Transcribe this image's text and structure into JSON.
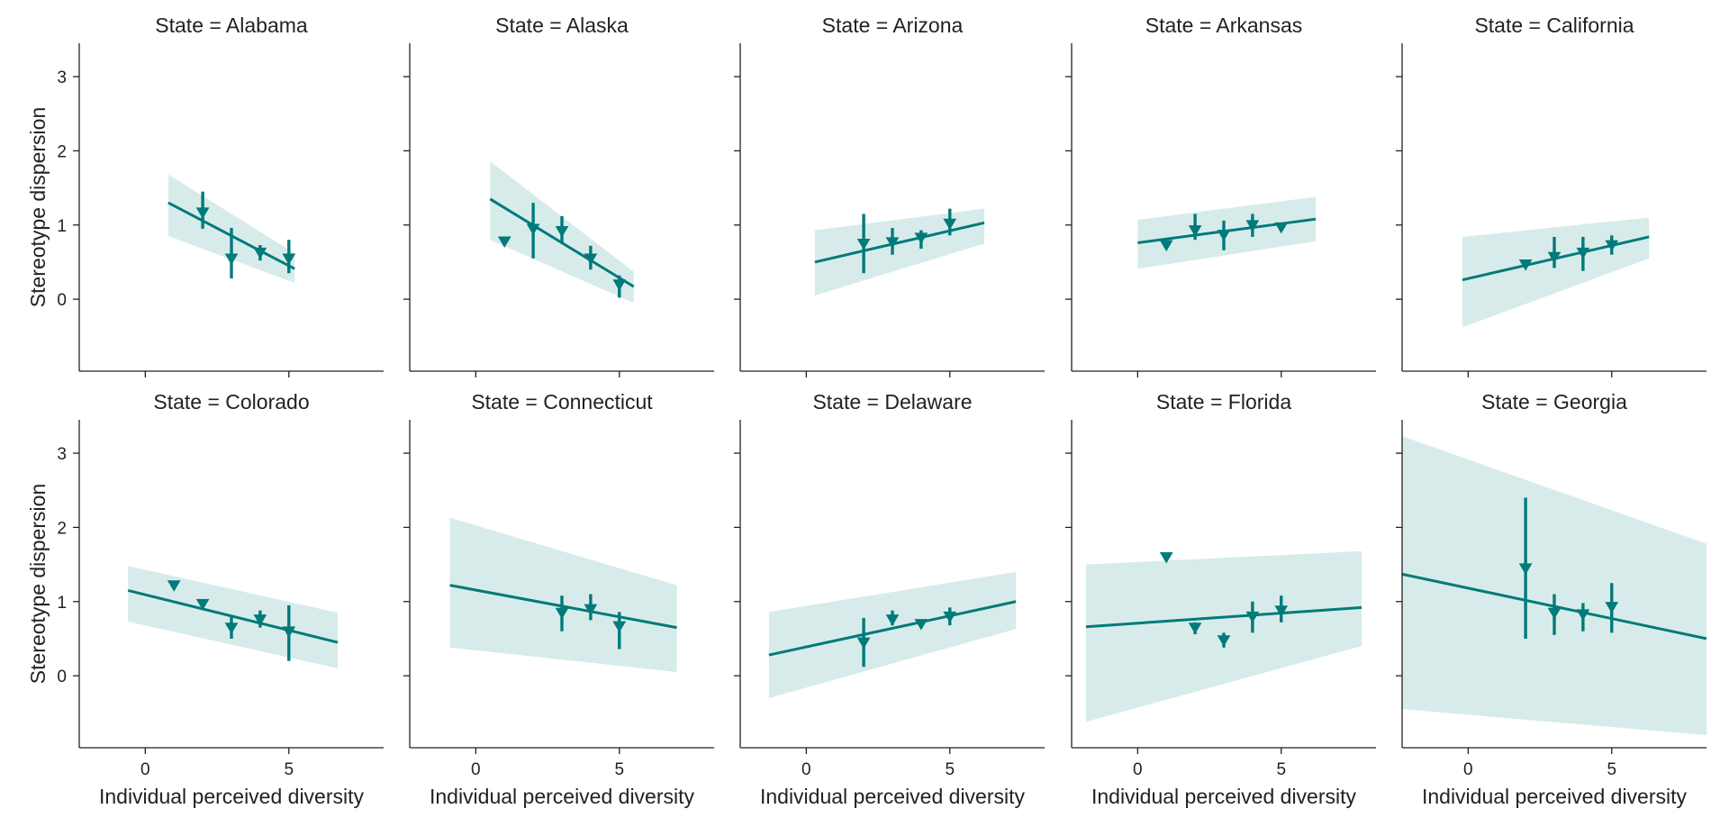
{
  "chart_data": {
    "type": "scatter",
    "layout": {
      "rows": 2,
      "cols": 5
    },
    "xlabel": "Individual perceived diversity",
    "ylabel": "Stereotype dispersion",
    "xlim": [
      -2.3,
      8.3
    ],
    "ylim": [
      -0.97,
      3.45
    ],
    "xticks": [
      0,
      5
    ],
    "yticks": [
      0,
      1,
      2,
      3
    ],
    "color": "#007a7a",
    "band_color": "#d7ecea",
    "marker": "triangle-down",
    "grid": false,
    "facets": [
      {
        "title": "State = Alabama",
        "fit": {
          "x": [
            0.8,
            5.2
          ],
          "y": [
            1.3,
            0.41
          ],
          "upper": [
            1.68,
            0.62
          ],
          "lower": [
            0.85,
            0.22
          ]
        },
        "points": [
          {
            "x": 2,
            "y": 1.17,
            "lo": 0.95,
            "hi": 1.45
          },
          {
            "x": 3,
            "y": 0.55,
            "lo": 0.28,
            "hi": 0.96
          },
          {
            "x": 4,
            "y": 0.63,
            "lo": 0.52,
            "hi": 0.73
          },
          {
            "x": 5,
            "y": 0.55,
            "lo": 0.35,
            "hi": 0.8
          }
        ]
      },
      {
        "title": "State = Alaska",
        "fit": {
          "x": [
            0.5,
            5.5
          ],
          "y": [
            1.35,
            0.17
          ],
          "upper": [
            1.86,
            0.37
          ],
          "lower": [
            0.8,
            -0.05
          ]
        },
        "points": [
          {
            "x": 1,
            "y": 0.78,
            "lo": 0.78,
            "hi": 0.78
          },
          {
            "x": 2,
            "y": 0.95,
            "lo": 0.55,
            "hi": 1.3
          },
          {
            "x": 3,
            "y": 0.92,
            "lo": 0.75,
            "hi": 1.12
          },
          {
            "x": 4,
            "y": 0.55,
            "lo": 0.4,
            "hi": 0.72
          },
          {
            "x": 5,
            "y": 0.2,
            "lo": 0.02,
            "hi": 0.32
          }
        ]
      },
      {
        "title": "State = Arizona",
        "fit": {
          "x": [
            0.3,
            6.2
          ],
          "y": [
            0.5,
            1.03
          ],
          "upper": [
            0.93,
            1.22
          ],
          "lower": [
            0.05,
            0.75
          ]
        },
        "points": [
          {
            "x": 2,
            "y": 0.75,
            "lo": 0.35,
            "hi": 1.15
          },
          {
            "x": 3,
            "y": 0.77,
            "lo": 0.6,
            "hi": 0.96
          },
          {
            "x": 4,
            "y": 0.83,
            "lo": 0.68,
            "hi": 0.93
          },
          {
            "x": 5,
            "y": 1.02,
            "lo": 0.86,
            "hi": 1.22
          }
        ]
      },
      {
        "title": "State = Arkansas",
        "fit": {
          "x": [
            0,
            6.2
          ],
          "y": [
            0.76,
            1.08
          ],
          "upper": [
            1.07,
            1.38
          ],
          "lower": [
            0.41,
            0.78
          ]
        },
        "points": [
          {
            "x": 1,
            "y": 0.73,
            "lo": 0.73,
            "hi": 0.73
          },
          {
            "x": 2,
            "y": 0.93,
            "lo": 0.8,
            "hi": 1.15
          },
          {
            "x": 3,
            "y": 0.87,
            "lo": 0.66,
            "hi": 1.06
          },
          {
            "x": 4,
            "y": 1.0,
            "lo": 0.84,
            "hi": 1.15
          },
          {
            "x": 5,
            "y": 0.97,
            "lo": 0.97,
            "hi": 0.97
          }
        ]
      },
      {
        "title": "State = California",
        "fit": {
          "x": [
            -0.2,
            6.3
          ],
          "y": [
            0.26,
            0.84
          ],
          "upper": [
            0.84,
            1.1
          ],
          "lower": [
            -0.38,
            0.55
          ]
        },
        "points": [
          {
            "x": 2,
            "y": 0.47,
            "lo": 0.47,
            "hi": 0.47
          },
          {
            "x": 3,
            "y": 0.57,
            "lo": 0.42,
            "hi": 0.84
          },
          {
            "x": 4,
            "y": 0.63,
            "lo": 0.38,
            "hi": 0.84
          },
          {
            "x": 5,
            "y": 0.73,
            "lo": 0.6,
            "hi": 0.86
          }
        ]
      },
      {
        "title": "State = Colorado",
        "fit": {
          "x": [
            -0.6,
            6.7
          ],
          "y": [
            1.15,
            0.45
          ],
          "upper": [
            1.48,
            0.85
          ],
          "lower": [
            0.73,
            0.1
          ]
        },
        "points": [
          {
            "x": 1,
            "y": 1.22,
            "lo": 1.22,
            "hi": 1.22
          },
          {
            "x": 2,
            "y": 0.97,
            "lo": 0.97,
            "hi": 0.97
          },
          {
            "x": 3,
            "y": 0.65,
            "lo": 0.5,
            "hi": 0.8
          },
          {
            "x": 4,
            "y": 0.76,
            "lo": 0.65,
            "hi": 0.88
          },
          {
            "x": 5,
            "y": 0.6,
            "lo": 0.2,
            "hi": 0.95
          }
        ]
      },
      {
        "title": "State = Connecticut",
        "fit": {
          "x": [
            -0.9,
            7.0
          ],
          "y": [
            1.22,
            0.65
          ],
          "upper": [
            2.13,
            1.22
          ],
          "lower": [
            0.38,
            0.05
          ]
        },
        "points": [
          {
            "x": 3,
            "y": 0.85,
            "lo": 0.6,
            "hi": 1.08
          },
          {
            "x": 4,
            "y": 0.9,
            "lo": 0.75,
            "hi": 1.1
          },
          {
            "x": 5,
            "y": 0.67,
            "lo": 0.36,
            "hi": 0.86
          }
        ]
      },
      {
        "title": "State = Delaware",
        "fit": {
          "x": [
            -1.3,
            7.3
          ],
          "y": [
            0.28,
            1.0
          ],
          "upper": [
            0.86,
            1.4
          ],
          "lower": [
            -0.3,
            0.63
          ]
        },
        "points": [
          {
            "x": 2,
            "y": 0.45,
            "lo": 0.12,
            "hi": 0.78
          },
          {
            "x": 3,
            "y": 0.76,
            "lo": 0.68,
            "hi": 0.88
          },
          {
            "x": 4,
            "y": 0.7,
            "lo": 0.7,
            "hi": 0.7
          },
          {
            "x": 5,
            "y": 0.8,
            "lo": 0.68,
            "hi": 0.92
          }
        ]
      },
      {
        "title": "State = Florida",
        "fit": {
          "x": [
            -1.8,
            7.8
          ],
          "y": [
            0.66,
            0.92
          ],
          "upper": [
            1.5,
            1.68
          ],
          "lower": [
            -0.62,
            0.4
          ]
        },
        "points": [
          {
            "x": 1,
            "y": 1.6,
            "lo": 1.6,
            "hi": 1.6
          },
          {
            "x": 2,
            "y": 0.65,
            "lo": 0.56,
            "hi": 0.72
          },
          {
            "x": 3,
            "y": 0.48,
            "lo": 0.38,
            "hi": 0.58
          },
          {
            "x": 4,
            "y": 0.8,
            "lo": 0.58,
            "hi": 1.0
          },
          {
            "x": 5,
            "y": 0.88,
            "lo": 0.72,
            "hi": 1.08
          }
        ]
      },
      {
        "title": "State = Georgia",
        "fit": {
          "x": [
            -2.3,
            8.3
          ],
          "y": [
            1.37,
            0.5
          ],
          "upper": [
            3.23,
            1.78
          ],
          "lower": [
            -0.45,
            -0.8
          ]
        },
        "points": [
          {
            "x": 2,
            "y": 1.45,
            "lo": 0.5,
            "hi": 2.4
          },
          {
            "x": 3,
            "y": 0.85,
            "lo": 0.55,
            "hi": 1.1
          },
          {
            "x": 4,
            "y": 0.83,
            "lo": 0.6,
            "hi": 0.98
          },
          {
            "x": 5,
            "y": 0.93,
            "lo": 0.58,
            "hi": 1.25
          }
        ]
      }
    ]
  }
}
